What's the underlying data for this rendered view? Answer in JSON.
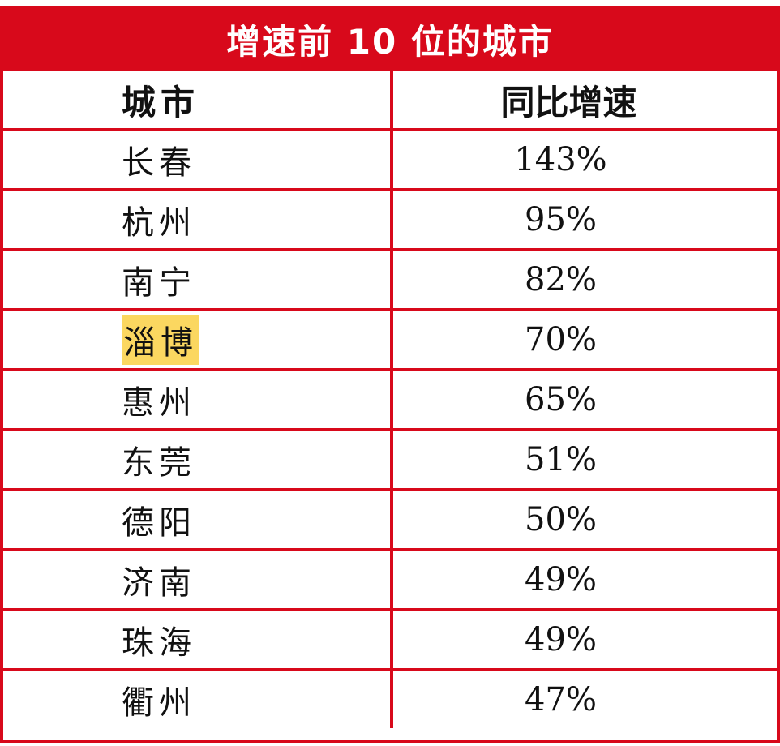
{
  "chart_data": {
    "type": "table",
    "title": "增速前 10 位的城市",
    "columns": [
      "城市",
      "同比增速"
    ],
    "rows": [
      {
        "city": "长春",
        "growth": "143%",
        "highlight": false
      },
      {
        "city": "杭州",
        "growth": "95%",
        "highlight": false
      },
      {
        "city": "南宁",
        "growth": "82%",
        "highlight": false
      },
      {
        "city": "淄博",
        "growth": "70%",
        "highlight": true
      },
      {
        "city": "惠州",
        "growth": "65%",
        "highlight": false
      },
      {
        "city": "东莞",
        "growth": "51%",
        "highlight": false
      },
      {
        "city": "德阳",
        "growth": "50%",
        "highlight": false
      },
      {
        "city": "济南",
        "growth": "49%",
        "highlight": false
      },
      {
        "city": "珠海",
        "growth": "49%",
        "highlight": false
      },
      {
        "city": "衢州",
        "growth": "47%",
        "highlight": false
      }
    ],
    "colors": {
      "accent": "#d8091b",
      "highlight": "#fbd760"
    }
  }
}
